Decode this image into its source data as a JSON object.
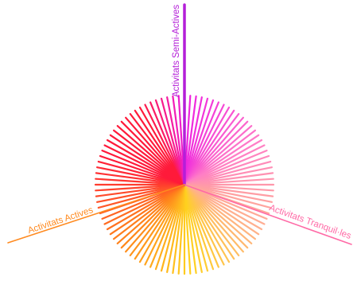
{
  "axes": [
    {
      "key": "semi",
      "label": "Activitats Semi-Actives",
      "color": "#b41fd8"
    },
    {
      "key": "tranquil",
      "label": "Activitats Tranquil·les",
      "color": "#ff6aa6"
    },
    {
      "key": "active",
      "label": "Activitats Actives",
      "color": "#ff8a1f"
    }
  ],
  "ray_count": 96,
  "ray_palette": {
    "magenta": "#ee1ee0",
    "pink": "#ff7ec6",
    "peach": "#ffb090",
    "yellow": "#ffd21e",
    "orange": "#ff7a1c",
    "red": "#ff1a3a"
  }
}
